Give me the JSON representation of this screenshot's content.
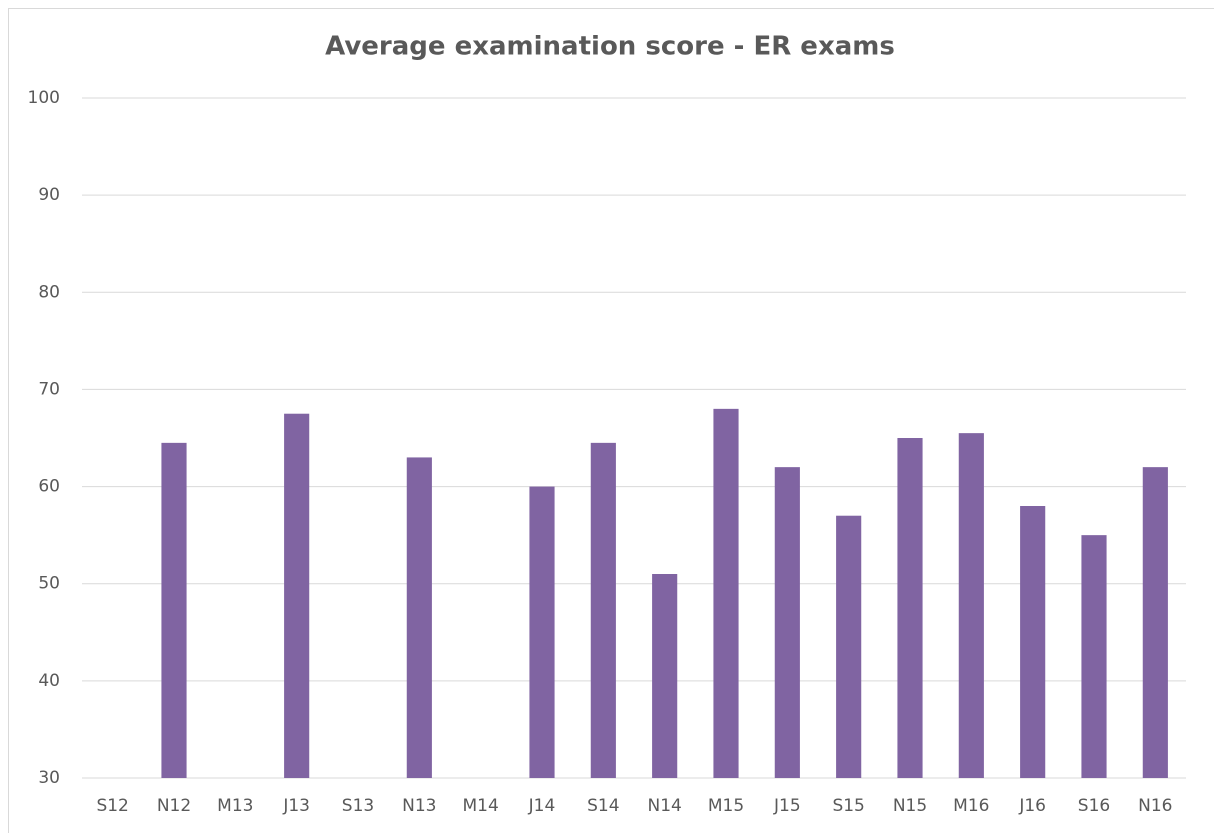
{
  "chart_data": {
    "type": "bar",
    "title": "Average examination score - ER exams",
    "categories": [
      "S12",
      "N12",
      "M13",
      "J13",
      "S13",
      "N13",
      "M14",
      "J14",
      "S14",
      "N14",
      "M15",
      "J15",
      "S15",
      "N15",
      "M16",
      "J16",
      "S16",
      "N16"
    ],
    "values": [
      null,
      64.5,
      null,
      67.5,
      null,
      63,
      null,
      60,
      64.5,
      51,
      68,
      62,
      57,
      65,
      65.5,
      58,
      55,
      62
    ],
    "color": "#8064a2",
    "ylim": [
      30,
      100
    ],
    "yticks": [
      30,
      40,
      50,
      60,
      70,
      80,
      90,
      100
    ],
    "grid": true
  }
}
